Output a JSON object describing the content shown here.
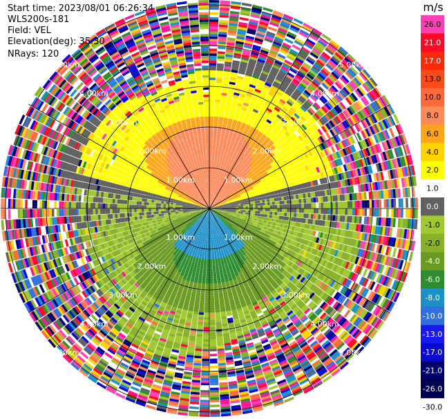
{
  "header": {
    "start_time": "Start time: 2023/08/01 06:26:34",
    "instrument": "WLS200s-181",
    "field": "Field: VEL",
    "elevation": "Elevation(deg): 35.30",
    "nrays": "NRays: 120"
  },
  "colorbar": {
    "unit": "m/s",
    "levels": [
      "26.0",
      "21.0",
      "17.0",
      "13.0",
      "10.0",
      "8.0",
      "6.0",
      "4.0",
      "2.0",
      "1.0",
      "0.0",
      "-1.0",
      "-2.0",
      "-4.0",
      "-6.0",
      "-8.0",
      "-10.0",
      "-13.0",
      "-17.0",
      "-21.0",
      "-26.0",
      "-30.0"
    ],
    "colors": [
      "#ff3fb4",
      "#ff0a26",
      "#ff2a0a",
      "#ff4a1a",
      "#ff6a3a",
      "#ff8a5a",
      "#ffa51a",
      "#ffd300",
      "#ffff00",
      "#ffffff",
      "#606060",
      "#a0c830",
      "#88b028",
      "#6a9a20",
      "#2e8b2e",
      "#1e90c8",
      "#3070e0",
      "#1a1af0",
      "#0a0ad0",
      "#00006a",
      "#000050",
      "#ffffff"
    ]
  },
  "chart_data": {
    "type": "heatmap",
    "title": "",
    "projection": "PPI (polar)",
    "field": "VEL",
    "units": "m/s",
    "range_rings": [
      "1.00km",
      "2.00km",
      "3.00km",
      "4.00km",
      "5.00km"
    ],
    "range_ring_values_km": [
      1,
      2,
      3,
      4,
      5
    ],
    "radial_spokes_deg": [
      0,
      30,
      60,
      90,
      120,
      150,
      180,
      210,
      240,
      270,
      300,
      330
    ],
    "pattern": {
      "north_sector": "positive velocities (2 to 8 m/s), yellow/orange with salmon core",
      "south_sector": "negative velocities (-2 to -10 m/s), green with blue core",
      "west_east_band": "near zero (gray)",
      "outer_ring": "noise (random colors)"
    }
  }
}
